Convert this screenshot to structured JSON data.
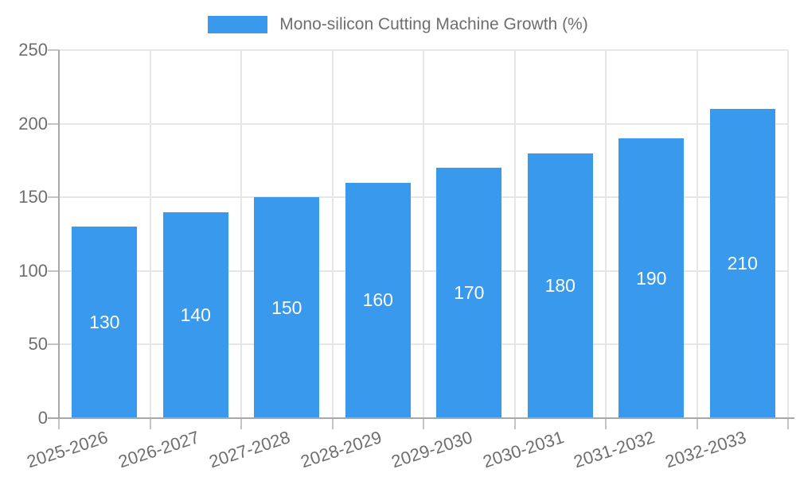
{
  "chart_data": {
    "type": "bar",
    "title": "",
    "series_name": "Mono-silicon Cutting Machine Growth (%)",
    "legend": [
      "Mono-silicon Cutting Machine Growth (%)"
    ],
    "legend_position": "top",
    "categories": [
      "2025-2026",
      "2026-2027",
      "2027-2028",
      "2028-2029",
      "2029-2030",
      "2030-2031",
      "2031-2032",
      "2032-2033"
    ],
    "values": [
      130,
      140,
      150,
      160,
      170,
      180,
      190,
      210
    ],
    "xlabel": "",
    "ylabel": "",
    "ylim": [
      0,
      250
    ],
    "yticks": [
      0,
      50,
      100,
      150,
      200,
      250
    ],
    "grid": true,
    "x_label_rotation_deg": -18,
    "colors": {
      "bar": "#3999ec",
      "bar_value_text": "#ffffff",
      "axis_text": "#6e6e6e",
      "legend_text": "#6e6e6e",
      "grid_line": "#e6e6e6",
      "axis_line": "#a8a8a8",
      "tick_line": "#c4c4c4",
      "background": "#ffffff"
    }
  }
}
